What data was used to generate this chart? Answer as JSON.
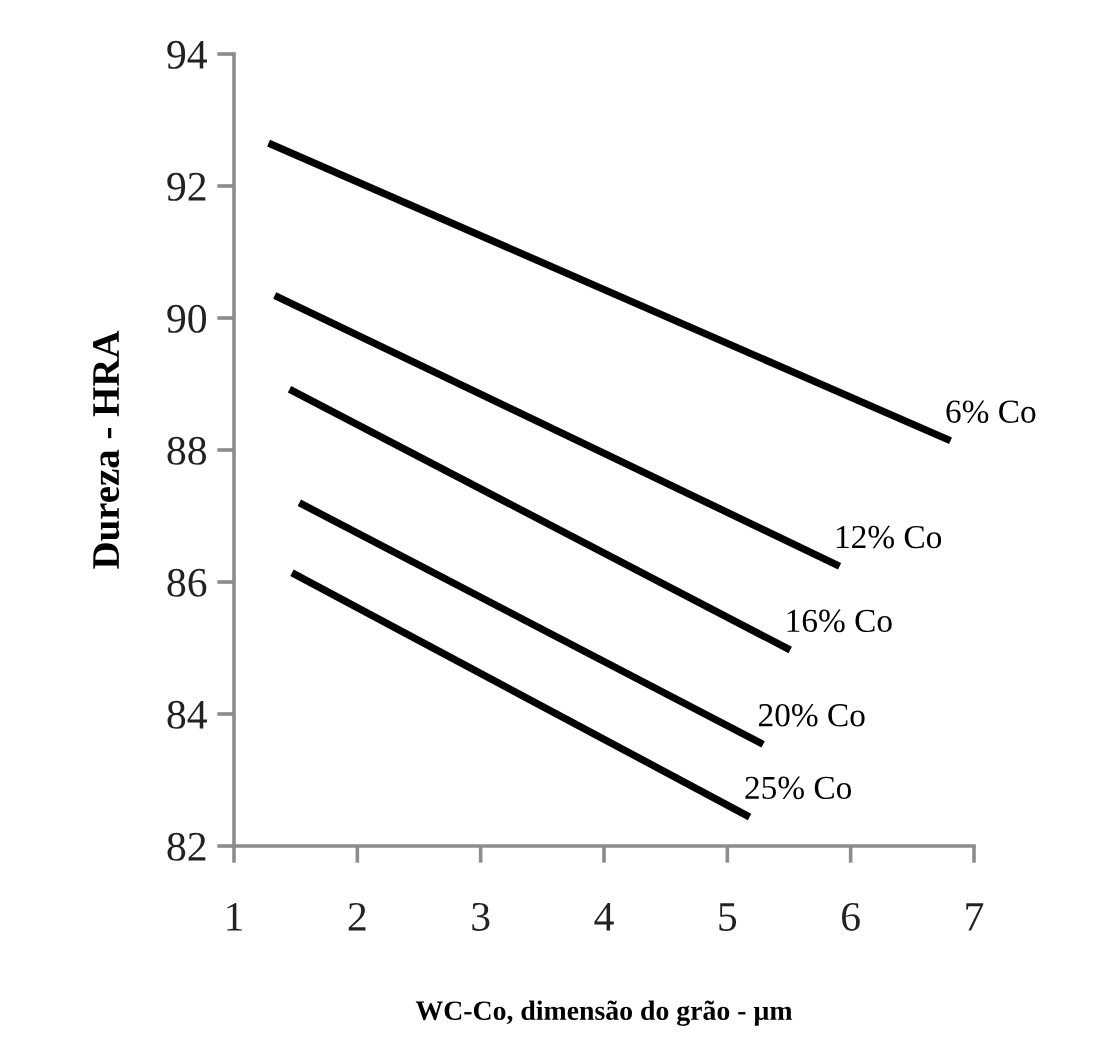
{
  "chart_data": {
    "type": "line",
    "xlabel": "WC-Co, dimensão do grão - µm",
    "ylabel": "Dureza - HRA",
    "xlim": [
      1,
      7
    ],
    "xticks": [
      1,
      2,
      3,
      4,
      5,
      6,
      7
    ],
    "ylim": [
      82,
      94
    ],
    "yticks": [
      82,
      84,
      86,
      88,
      90,
      92,
      94
    ],
    "grid": false,
    "legend": false,
    "marker": "none",
    "line_style": "solid",
    "series": [
      {
        "name": "6% Co",
        "color": "#000000",
        "x": [
          1.28,
          6.81
        ],
        "values": [
          92.65,
          88.14
        ]
      },
      {
        "name": "12% Co",
        "color": "#000000",
        "x": [
          1.33,
          5.91
        ],
        "values": [
          90.34,
          86.24
        ]
      },
      {
        "name": "16% Co",
        "color": "#000000",
        "x": [
          1.45,
          5.51
        ],
        "values": [
          88.92,
          84.97
        ]
      },
      {
        "name": "20% Co",
        "color": "#000000",
        "x": [
          1.53,
          5.29
        ],
        "values": [
          87.2,
          83.54
        ]
      },
      {
        "name": "25% Co",
        "color": "#000000",
        "x": [
          1.47,
          5.18
        ],
        "values": [
          86.14,
          82.44
        ]
      }
    ]
  }
}
